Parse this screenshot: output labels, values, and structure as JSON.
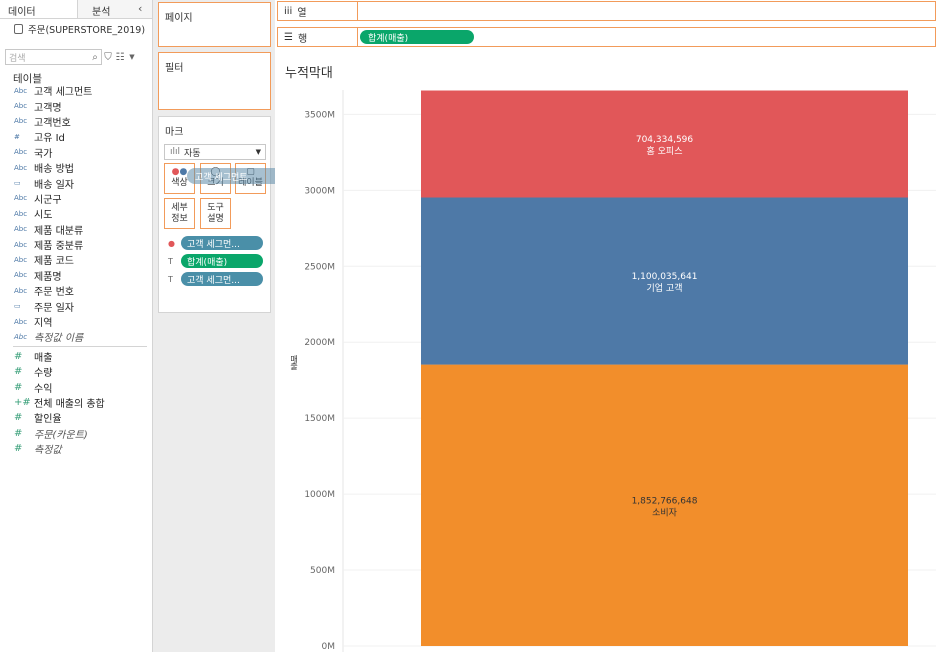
{
  "left_pane": {
    "tabs": [
      "데이터",
      "분석"
    ],
    "collapse_icon": "chevron-left-icon",
    "datasource": "주문(SUPERSTORE_2019)",
    "search_placeholder": "검색",
    "table_header": "테이블",
    "dimensions": [
      {
        "type": "Abc",
        "name": "고객 세그먼트"
      },
      {
        "type": "Abc",
        "name": "고객명"
      },
      {
        "type": "Abc",
        "name": "고객번호"
      },
      {
        "type": "#",
        "name": "고유 Id"
      },
      {
        "type": "Abc",
        "name": "국가"
      },
      {
        "type": "Abc",
        "name": "배송 방법"
      },
      {
        "type": "date",
        "name": "배송 일자"
      },
      {
        "type": "Abc",
        "name": "시군구"
      },
      {
        "type": "Abc",
        "name": "시도"
      },
      {
        "type": "Abc",
        "name": "제품 대분류"
      },
      {
        "type": "Abc",
        "name": "제품 중분류"
      },
      {
        "type": "Abc",
        "name": "제품 코드"
      },
      {
        "type": "Abc",
        "name": "제품명"
      },
      {
        "type": "Abc",
        "name": "주문 번호"
      },
      {
        "type": "date",
        "name": "주문 일자"
      },
      {
        "type": "Abc",
        "name": "지역"
      },
      {
        "type": "Abc",
        "name": "측정값 이름",
        "italic": true
      }
    ],
    "measures": [
      {
        "type": "#",
        "name": "매출"
      },
      {
        "type": "#",
        "name": "수량"
      },
      {
        "type": "#",
        "name": "수익"
      },
      {
        "type": "+#",
        "name": "전체 매출의 총합"
      },
      {
        "type": "#",
        "name": "할인율"
      },
      {
        "type": "#",
        "name": "주문(카운트)",
        "italic": true
      },
      {
        "type": "#",
        "name": "측정값",
        "italic": true
      }
    ]
  },
  "cards": {
    "pages": "페이지",
    "filters": "필터",
    "marks": "마크",
    "marks_type": "자동",
    "buttons": {
      "color": "색상",
      "size": "크기",
      "label": "레이블",
      "detail_1": "세부",
      "detail_2": "정보",
      "tooltip_1": "도구",
      "tooltip_2": "설명"
    },
    "mark_pills": [
      "고객 세그먼...",
      "합계(매출)",
      "고객 세그먼..."
    ],
    "drag_pill": "고객 세그먼트"
  },
  "shelves": {
    "columns_label": "열",
    "rows_label": "행",
    "rows_pill": "합계(매출)"
  },
  "chart_data": {
    "type": "bar",
    "title": "누적막대",
    "ylabel": "매출",
    "ylim": [
      0,
      3700000000
    ],
    "yticks": [
      "0M",
      "500M",
      "1000M",
      "1500M",
      "2000M",
      "2500M",
      "3000M",
      "3500M"
    ],
    "stacked": true,
    "series": [
      {
        "name": "소비자",
        "value": 1852766648,
        "label": "1,852,766,648",
        "color": "#f28e2b"
      },
      {
        "name": "기업 고객",
        "value": 1100035641,
        "label": "1,100,035,641",
        "color": "#4e79a7"
      },
      {
        "name": "홈 오피스",
        "value": 704334596,
        "label": "704,334,596",
        "color": "#e15759"
      }
    ],
    "grid": true,
    "legend": "none"
  }
}
